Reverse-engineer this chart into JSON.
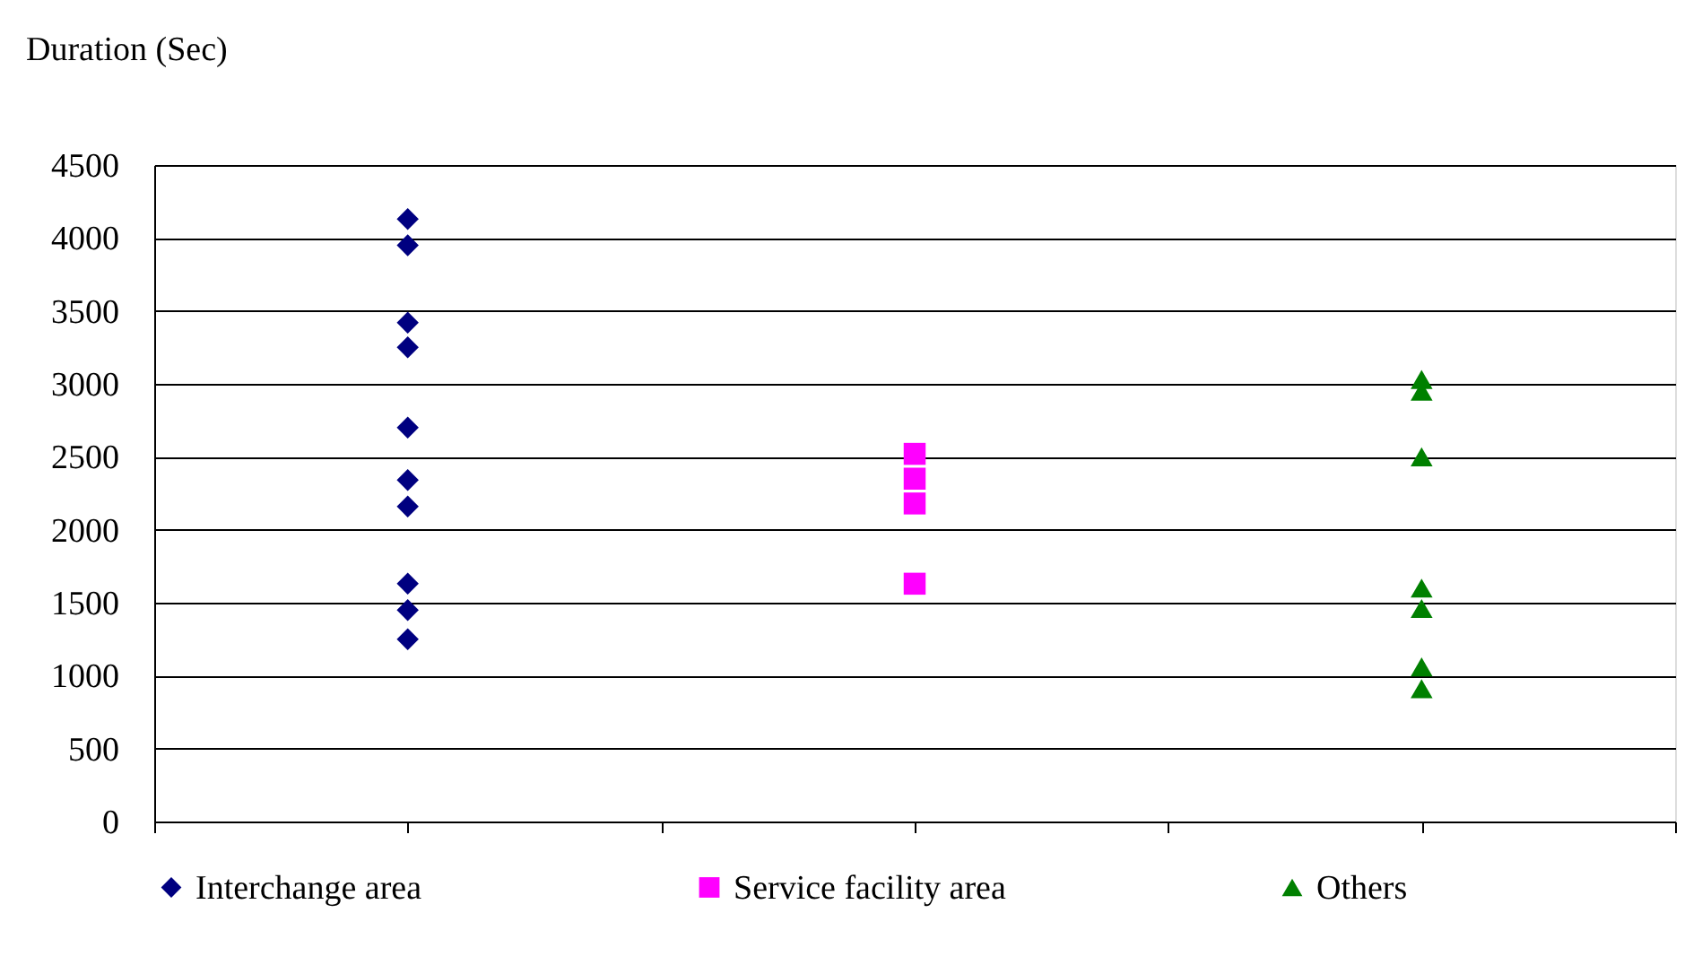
{
  "chart_data": {
    "type": "scatter",
    "ylabel": "Duration (Sec)",
    "categories": [
      null,
      null,
      null
    ],
    "ylim": [
      0,
      4500
    ],
    "yticks": [
      0,
      500,
      1000,
      1500,
      2000,
      2500,
      3000,
      3500,
      4000,
      4500
    ],
    "tick_labels": "y",
    "grid": "y",
    "legend": "bottom",
    "series": [
      {
        "name": "Interchange area",
        "color": "#000080",
        "marker": "diamond",
        "values": [
          4130,
          null,
          null
        ]
      },
      {
        "color": "#000080",
        "marker": "diamond",
        "values": [
          3950,
          null,
          null
        ]
      },
      {
        "color": "#000080",
        "marker": "diamond",
        "values": [
          3420,
          null,
          null
        ]
      },
      {
        "color": "#000080",
        "marker": "diamond",
        "values": [
          3250,
          null,
          null
        ]
      },
      {
        "color": "#000080",
        "marker": "diamond",
        "values": [
          2700,
          null,
          null
        ]
      },
      {
        "color": "#000080",
        "marker": "diamond",
        "values": [
          2340,
          null,
          null
        ]
      },
      {
        "color": "#000080",
        "marker": "diamond",
        "values": [
          2160,
          null,
          null
        ]
      },
      {
        "color": "#000080",
        "marker": "diamond",
        "values": [
          1630,
          null,
          null
        ]
      },
      {
        "color": "#000080",
        "marker": "diamond",
        "values": [
          1450,
          null,
          null
        ]
      },
      {
        "color": "#000080",
        "marker": "diamond",
        "values": [
          1250,
          null,
          null
        ]
      },
      {
        "name": "Service facility area",
        "color": "#ff00ff",
        "marker": "square",
        "values": [
          null,
          2520,
          null
        ]
      },
      {
        "color": "#ff00ff",
        "marker": "square",
        "values": [
          null,
          2350,
          null
        ]
      },
      {
        "color": "#ff00ff",
        "marker": "square",
        "values": [
          null,
          2180,
          null
        ]
      },
      {
        "color": "#ff00ff",
        "marker": "square",
        "values": [
          null,
          1630,
          null
        ]
      },
      {
        "name": "Others",
        "color": "#008000",
        "marker": "triangle",
        "values": [
          null,
          null,
          3030
        ]
      },
      {
        "color": "#008000",
        "marker": "triangle",
        "values": [
          null,
          null,
          2950
        ]
      },
      {
        "color": "#008000",
        "marker": "triangle",
        "values": [
          null,
          null,
          2500
        ]
      },
      {
        "color": "#008000",
        "marker": "triangle",
        "values": [
          null,
          null,
          1600
        ]
      },
      {
        "color": "#008000",
        "marker": "triangle",
        "values": [
          null,
          null,
          1460
        ]
      },
      {
        "color": "#008000",
        "marker": "triangle",
        "values": [
          null,
          null,
          1060
        ]
      },
      {
        "color": "#008000",
        "marker": "triangle",
        "values": [
          null,
          null,
          910
        ]
      }
    ]
  }
}
